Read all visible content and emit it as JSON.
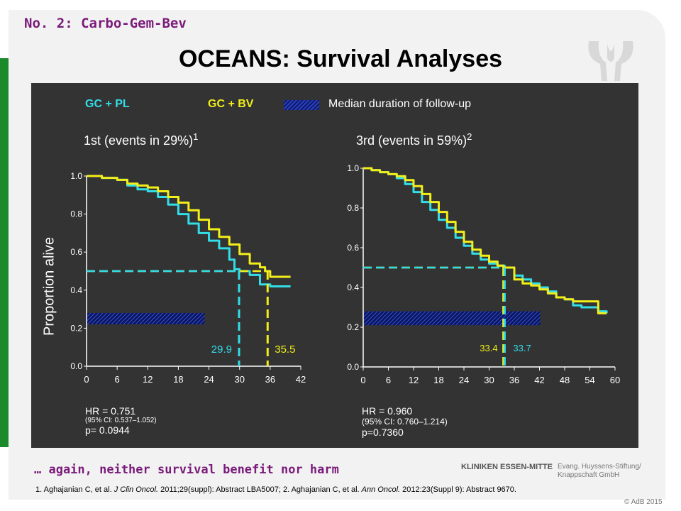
{
  "slide": {
    "header_tag": "No. 2: Carbo-Gem-Bev",
    "title": "OCEANS: Survival Analyses",
    "footer_note": "… again, neither survival benefit nor harm",
    "logo_text_1": "KLINIKEN ESSEN-MITTE",
    "logo_text_2": "Evang. Huyssens-Stiftung/ Knappschaft GmbH",
    "refs": {
      "p1": "1. Aghajanian C, et al. ",
      "j1": "J Clin Oncol.",
      "p2": " 2011;29(suppl): Abstract LBA5007; 2. Aghajanian C, et al. ",
      "j2": "Ann Oncol.",
      "p3": " 2012:23(Suppl 9): Abstract 9670."
    },
    "copyright": "© AdB 2015"
  },
  "legend": {
    "pl_label": "GC + PL",
    "bv_label": "GC + BV",
    "follow_label": "Median duration of follow-up"
  },
  "colors": {
    "pl": "#33dde8",
    "bv": "#f2ee1a",
    "panel": "#333333",
    "hatch": "#1a2a8a",
    "accent": "#7a1a7a"
  },
  "ylabel": "Proportion alive",
  "left_stats": {
    "hr": "HR = 0.751",
    "ci": "(95% CI: 0.537–1.052)",
    "p": "p= 0.0944"
  },
  "right_stats": {
    "hr": "HR = 0.960",
    "ci": "(95% CI: 0.760–1.214)",
    "p": "p=0.7360"
  },
  "chart_data": [
    {
      "type": "line",
      "subtitle": "1st (events in 29%)",
      "subtitle_sup": "1",
      "ylabel": "Proportion alive",
      "xlim": [
        0,
        42
      ],
      "ylim": [
        0,
        1.0
      ],
      "xticks": [
        0,
        6,
        12,
        18,
        24,
        30,
        36,
        42
      ],
      "yticks": [
        "0.0",
        "0.2",
        "0.4",
        "0.6",
        "0.8",
        "1.0"
      ],
      "grid": false,
      "series": [
        {
          "name": "GC + PL",
          "x": [
            0,
            3,
            6,
            8,
            10,
            12,
            14,
            16,
            18,
            20,
            22,
            24,
            26,
            28,
            29,
            30,
            32,
            34,
            36,
            38,
            40
          ],
          "y": [
            1.0,
            0.99,
            0.98,
            0.95,
            0.93,
            0.92,
            0.89,
            0.85,
            0.8,
            0.75,
            0.7,
            0.66,
            0.62,
            0.56,
            0.51,
            0.5,
            0.48,
            0.43,
            0.42,
            0.42,
            0.42
          ]
        },
        {
          "name": "GC + BV",
          "x": [
            0,
            3,
            6,
            8,
            10,
            12,
            14,
            16,
            18,
            20,
            22,
            24,
            26,
            28,
            30,
            32,
            34,
            35,
            36,
            38,
            40
          ],
          "y": [
            1.0,
            0.99,
            0.98,
            0.96,
            0.95,
            0.94,
            0.92,
            0.89,
            0.86,
            0.82,
            0.77,
            0.72,
            0.68,
            0.64,
            0.59,
            0.54,
            0.52,
            0.5,
            0.47,
            0.47,
            0.47
          ]
        }
      ],
      "median_follow_up": {
        "x_start": 0,
        "x_end": 23,
        "y_low": 0.22,
        "y_high": 0.28
      },
      "median_markers": [
        {
          "series": "GC + PL",
          "x": 29.9,
          "label": "29.9"
        },
        {
          "series": "GC + BV",
          "x": 35.5,
          "label": "35.5"
        }
      ],
      "median_level": 0.5
    },
    {
      "type": "line",
      "subtitle": "3rd (events in 59%)",
      "subtitle_sup": "2",
      "xlim": [
        0,
        60
      ],
      "ylim": [
        0,
        1.0
      ],
      "xticks": [
        0,
        6,
        12,
        18,
        24,
        30,
        36,
        42,
        48,
        54,
        60
      ],
      "yticks": [
        "0.0",
        "0.2",
        "0.4",
        "0.6",
        "0.8",
        "1.0"
      ],
      "grid": false,
      "series": [
        {
          "name": "GC + PL",
          "x": [
            0,
            2,
            4,
            6,
            8,
            10,
            12,
            14,
            16,
            18,
            20,
            22,
            24,
            26,
            28,
            30,
            32,
            33.7,
            36,
            38,
            40,
            42,
            44,
            46,
            48,
            50,
            52,
            54,
            56,
            58
          ],
          "y": [
            1.0,
            0.99,
            0.98,
            0.97,
            0.95,
            0.92,
            0.88,
            0.83,
            0.79,
            0.74,
            0.7,
            0.65,
            0.61,
            0.57,
            0.54,
            0.52,
            0.51,
            0.5,
            0.46,
            0.44,
            0.42,
            0.4,
            0.38,
            0.35,
            0.34,
            0.31,
            0.3,
            0.3,
            0.28,
            0.27
          ]
        },
        {
          "name": "GC + BV",
          "x": [
            0,
            2,
            4,
            6,
            8,
            10,
            12,
            14,
            16,
            18,
            20,
            22,
            24,
            26,
            28,
            30,
            32,
            33.4,
            36,
            38,
            40,
            42,
            44,
            46,
            48,
            50,
            52,
            54,
            56,
            58
          ],
          "y": [
            1.0,
            0.99,
            0.98,
            0.97,
            0.96,
            0.94,
            0.91,
            0.87,
            0.83,
            0.78,
            0.73,
            0.68,
            0.63,
            0.59,
            0.56,
            0.53,
            0.51,
            0.5,
            0.44,
            0.42,
            0.41,
            0.39,
            0.37,
            0.35,
            0.34,
            0.33,
            0.33,
            0.33,
            0.27,
            0.27
          ]
        }
      ],
      "median_follow_up": {
        "x_start": 0,
        "x_end": 42,
        "y_low": 0.21,
        "y_high": 0.28
      },
      "median_markers": [
        {
          "series": "GC + BV",
          "x": 33.4,
          "label": "33.4"
        },
        {
          "series": "GC + PL",
          "x": 33.7,
          "label": "33.7"
        }
      ],
      "median_level": 0.5
    }
  ]
}
